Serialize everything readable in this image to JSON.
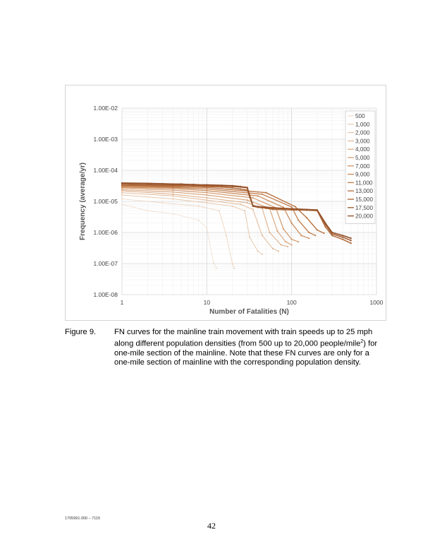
{
  "chart_data": {
    "type": "line",
    "xlabel": "Number of Fatalities (N)",
    "ylabel": "Frequency (average/yr)",
    "xscale": "log",
    "yscale": "log",
    "xlim": [
      1,
      1000
    ],
    "ylim": [
      1e-08,
      0.01
    ],
    "xticks": [
      "1",
      "10",
      "100",
      "1000"
    ],
    "yticks": [
      "1.00E-08",
      "1.00E-07",
      "1.00E-06",
      "1.00E-05",
      "1.00E-04",
      "1.00E-03",
      "1.00E-02"
    ],
    "grid": true,
    "legend_position": "top-right",
    "series": [
      {
        "name": "500",
        "color": "#f1dfd0",
        "x": [
          1,
          2,
          4,
          8,
          10,
          12,
          13
        ],
        "y": [
          8e-06,
          5e-06,
          4e-06,
          2.5e-06,
          1.4e-06,
          1.1e-07,
          7e-08
        ]
      },
      {
        "name": "1,000",
        "color": "#edd4bf",
        "x": [
          1,
          3,
          8,
          14,
          17,
          20,
          21
        ],
        "y": [
          1.2e-05,
          9e-06,
          7e-06,
          5e-06,
          8e-07,
          1e-07,
          7e-08
        ]
      },
      {
        "name": "2,000",
        "color": "#e8c8ad",
        "x": [
          1,
          4,
          10,
          20,
          28,
          32,
          40,
          45
        ],
        "y": [
          1.6e-05,
          1.2e-05,
          9e-06,
          7e-06,
          5e-06,
          7e-07,
          2.5e-07,
          2e-07
        ]
      },
      {
        "name": "3,000",
        "color": "#e3bc9c",
        "x": [
          1,
          4,
          10,
          25,
          35,
          45,
          60,
          70
        ],
        "y": [
          1.9e-05,
          1.5e-05,
          1.1e-05,
          8e-06,
          5.5e-06,
          8e-07,
          3e-07,
          2.5e-07
        ]
      },
      {
        "name": "4,000",
        "color": "#dfb18c",
        "x": [
          1,
          4,
          10,
          30,
          45,
          55,
          75,
          90
        ],
        "y": [
          2.2e-05,
          1.7e-05,
          1.3e-05,
          9e-06,
          6e-06,
          1e-06,
          4e-07,
          3.5e-07
        ]
      },
      {
        "name": "5,000",
        "color": "#d9a57c",
        "x": [
          1,
          4,
          10,
          30,
          55,
          68,
          85,
          100
        ],
        "y": [
          2.4e-05,
          2e-05,
          1.6e-05,
          1.1e-05,
          6e-06,
          1.1e-06,
          5e-07,
          4e-07
        ]
      },
      {
        "name": "7,000",
        "color": "#d39a6d",
        "x": [
          1,
          4,
          10,
          35,
          65,
          80,
          100,
          120
        ],
        "y": [
          2.7e-05,
          2.3e-05,
          1.9e-05,
          1.3e-05,
          6.2e-06,
          1.3e-06,
          6e-07,
          5e-07
        ]
      },
      {
        "name": "9,000",
        "color": "#cc8e5f",
        "x": [
          1,
          4,
          10,
          40,
          80,
          100,
          130,
          160
        ],
        "y": [
          2.9e-05,
          2.6e-05,
          2.2e-05,
          1.5e-05,
          6.4e-06,
          2e-06,
          8e-07,
          6.5e-07
        ]
      },
      {
        "name": "11,000",
        "color": "#c48252",
        "x": [
          1,
          4,
          10,
          45,
          100,
          120,
          160,
          190
        ],
        "y": [
          3.1e-05,
          2.8e-05,
          2.5e-05,
          1.7e-05,
          6.6e-06,
          2.5e-06,
          1e-06,
          8e-07
        ]
      },
      {
        "name": "13,000",
        "color": "#bb7646",
        "x": [
          1,
          4,
          10,
          50,
          110,
          150,
          200,
          240
        ],
        "y": [
          3.3e-05,
          3e-05,
          2.8e-05,
          1.9e-05,
          6.8e-06,
          3e-06,
          1.2e-06,
          9.5e-07
        ]
      },
      {
        "name": "15,000",
        "color": "#b06a3b",
        "x": [
          1,
          2,
          3,
          4,
          5,
          6,
          7,
          8,
          10,
          15,
          20,
          25,
          30,
          35,
          40,
          50,
          60,
          80,
          100,
          150,
          200,
          250,
          300,
          400,
          500
        ],
        "y": [
          3.3e-05,
          3.3e-05,
          3.2e-05,
          3.2e-05,
          3.2e-05,
          3.2e-05,
          3.1e-05,
          3.1e-05,
          3e-05,
          2.9e-05,
          2.7e-05,
          2.5e-05,
          2.3e-05,
          7e-06,
          6.5e-06,
          6e-06,
          5.5e-06,
          5.4e-06,
          5.3e-06,
          5.2e-06,
          5e-06,
          1.5e-06,
          8e-07,
          6e-07,
          4.5e-07
        ]
      },
      {
        "name": "17,500",
        "color": "#a45e32",
        "x": [
          1,
          2,
          3,
          4,
          5,
          6,
          7,
          8,
          10,
          15,
          20,
          25,
          30,
          35,
          40,
          50,
          60,
          80,
          100,
          150,
          200,
          250,
          300,
          400,
          500
        ],
        "y": [
          3.6e-05,
          3.5e-05,
          3.4e-05,
          3.4e-05,
          3.4e-05,
          3.3e-05,
          3.3e-05,
          3.3e-05,
          3.2e-05,
          3.1e-05,
          3e-05,
          2.9e-05,
          2.7e-05,
          7e-06,
          6.5e-06,
          6.2e-06,
          6e-06,
          5.8e-06,
          5.6e-06,
          5.4e-06,
          5.2e-06,
          1.8e-06,
          9e-07,
          7e-07,
          5.5e-07
        ]
      },
      {
        "name": "20,000",
        "color": "#94522b",
        "x": [
          1,
          2,
          3,
          4,
          5,
          6,
          7,
          8,
          10,
          15,
          20,
          25,
          30,
          35,
          40,
          50,
          60,
          80,
          100,
          150,
          200,
          250,
          300,
          400,
          500
        ],
        "y": [
          3.9e-05,
          3.8e-05,
          3.7e-05,
          3.6e-05,
          3.6e-05,
          3.5e-05,
          3.5e-05,
          3.4e-05,
          3.4e-05,
          3.3e-05,
          3.2e-05,
          3e-05,
          2.8e-05,
          7.2e-06,
          6.8e-06,
          6.5e-06,
          6.2e-06,
          6e-06,
          5.8e-06,
          5.5e-06,
          5.3e-06,
          2e-06,
          1e-06,
          8e-07,
          6.5e-07
        ]
      }
    ]
  },
  "caption": {
    "label": "Figure 9.",
    "text_1": "FN curves for the mainline train movement with train speeds up to 25 mph along different population densities (from 500 up to 20,000 people/mile",
    "superscript": "2",
    "text_2": ") for one-mile section of the mainline. Note that these FN curves are only for a one-mile section of mainline with the corresponding population density."
  },
  "footer": {
    "doc_id": "1705991.000 – 7115",
    "page_number": "42"
  }
}
